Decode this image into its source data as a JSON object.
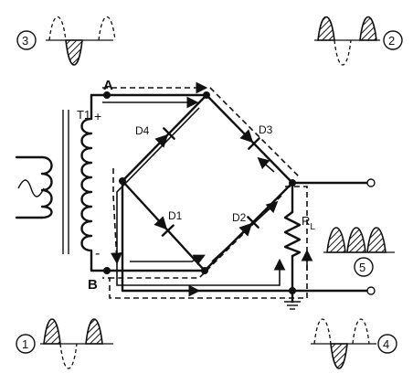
{
  "labels": {
    "node_a": "A",
    "node_b": "B",
    "transformer": "T1",
    "plus": "+",
    "minus": "-",
    "diode_1": "D1",
    "diode_2": "D2",
    "diode_3": "D3",
    "diode_4": "D4",
    "load_r": "R",
    "load_sub": "L",
    "waveform_1": "1",
    "waveform_2": "2",
    "waveform_3": "3",
    "waveform_4": "4",
    "waveform_5": "5"
  },
  "icons": {
    "ac_source": "sine-wave-symbol",
    "ground": "ground-icon"
  }
}
